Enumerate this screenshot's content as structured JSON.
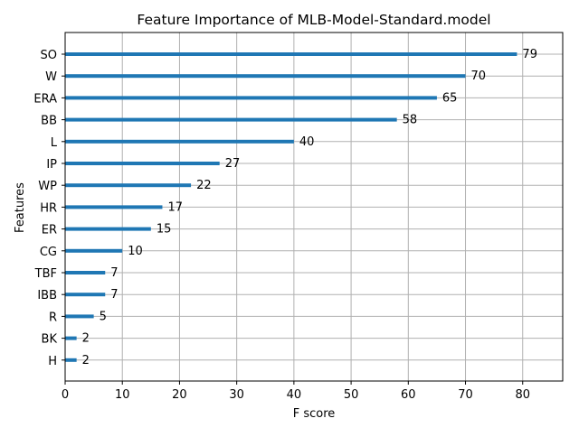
{
  "chart_data": {
    "type": "bar",
    "orientation": "horizontal",
    "title": "Feature Importance of MLB-Model-Standard.model",
    "xlabel": "F score",
    "ylabel": "Features",
    "categories": [
      "SO",
      "W",
      "ERA",
      "BB",
      "L",
      "IP",
      "WP",
      "HR",
      "ER",
      "CG",
      "TBF",
      "IBB",
      "R",
      "BK",
      "H"
    ],
    "values": [
      79,
      70,
      65,
      58,
      40,
      27,
      22,
      17,
      15,
      10,
      7,
      7,
      5,
      2,
      2
    ],
    "xlim": [
      0,
      87
    ],
    "xticks": [
      0,
      10,
      20,
      30,
      40,
      50,
      60,
      70,
      80
    ],
    "grid": true,
    "bar_color": "#1f77b4"
  }
}
